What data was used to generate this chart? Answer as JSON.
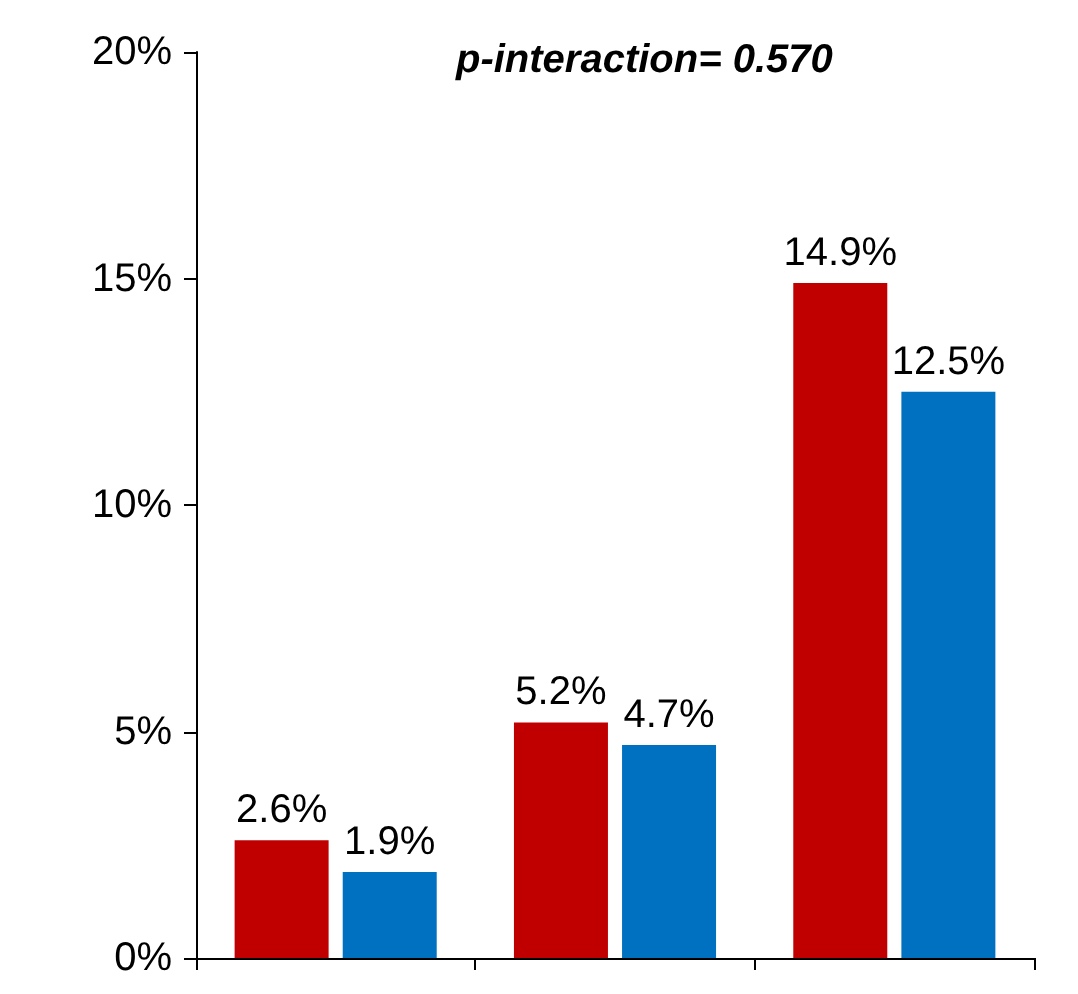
{
  "chart_data": {
    "type": "bar",
    "annotations": [
      "p-interaction= 0.570"
    ],
    "categories": [
      null,
      null,
      null
    ],
    "series": [
      {
        "color": "#c00000",
        "values": [
          2.6,
          5.2,
          14.9
        ],
        "value_labels": [
          "2.6%",
          "5.2%",
          "14.9%"
        ]
      },
      {
        "color": "#0070c0",
        "values": [
          1.9,
          4.7,
          12.5
        ],
        "value_labels": [
          "1.9%",
          "4.7%",
          "12.5%"
        ]
      }
    ],
    "ylim": [
      0,
      20
    ],
    "yticks": [
      {
        "value": 0,
        "label": "0%"
      },
      {
        "value": 5,
        "label": "5%"
      },
      {
        "value": 10,
        "label": "10%"
      },
      {
        "value": 15,
        "label": "15%"
      },
      {
        "value": 20,
        "label": "20%"
      }
    ],
    "grid": false
  }
}
